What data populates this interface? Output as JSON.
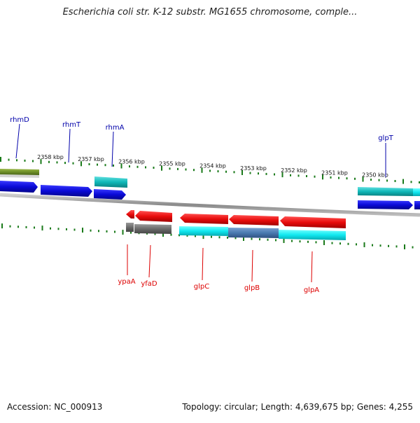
{
  "title": "Escherichia coli str. K-12 substr. MG1655 chromosome, comple...",
  "footer": {
    "accession": "Accession: NC_000913",
    "summary": "Topology: circular; Length: 4,639,675 bp; Genes: 4,255"
  },
  "colors": {
    "tick": "#1a7a1a",
    "label_top": "#0000aa",
    "label_bottom": "#dd0000",
    "backbone": "#999999",
    "blue_gene": "#1010e0",
    "cyan_gene": "#10e8f0",
    "teal_gene": "#10b8b8",
    "olive_gene": "#6e8f28",
    "red_gene": "#e80c0c",
    "gray_gene": "#707070",
    "steel_gene": "#4a7ab0"
  },
  "scale_labels": [
    "2358 kbp",
    "2357 kbp",
    "2356 kbp",
    "2355 kbp",
    "2354 kbp",
    "2353 kbp",
    "2352 kbp",
    "2351 kbp",
    "2350 kbp"
  ],
  "genes_top": [
    {
      "name": "rhmD"
    },
    {
      "name": "rhmT"
    },
    {
      "name": "rhmA"
    },
    {
      "name": "glpT"
    }
  ],
  "genes_bottom": [
    {
      "name": "ypaA"
    },
    {
      "name": "yfaD"
    },
    {
      "name": "glpC"
    },
    {
      "name": "glpB"
    },
    {
      "name": "glpA"
    }
  ]
}
